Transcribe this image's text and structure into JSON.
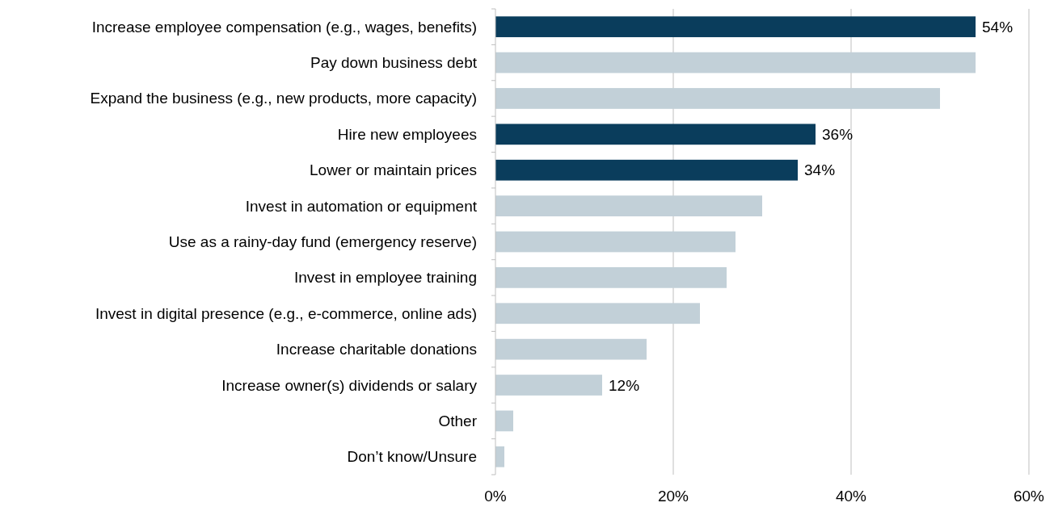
{
  "chart_data": {
    "type": "bar",
    "orientation": "horizontal",
    "categories": [
      "Increase employee compensation (e.g., wages, benefits)",
      "Pay down business debt",
      "Expand the business (e.g., new products, more capacity)",
      "Hire new employees",
      "Lower or maintain prices",
      "Invest in automation or equipment",
      "Use as a rainy-day fund (emergency reserve)",
      "Invest in employee training",
      "Invest in digital presence (e.g., e-commerce, online ads)",
      "Increase charitable donations",
      "Increase owner(s) dividends or salary",
      "Other",
      "Don’t know/Unsure"
    ],
    "values": [
      54,
      54,
      50,
      36,
      34,
      30,
      27,
      26,
      23,
      17,
      12,
      2,
      1
    ],
    "value_labels": [
      "54%",
      null,
      null,
      "36%",
      "34%",
      null,
      null,
      null,
      null,
      null,
      "12%",
      null,
      null
    ],
    "colors": [
      "#0a3d5c",
      "#c2d0d8",
      "#c2d0d8",
      "#0a3d5c",
      "#0a3d5c",
      "#c2d0d8",
      "#c2d0d8",
      "#c2d0d8",
      "#c2d0d8",
      "#c2d0d8",
      "#c2d0d8",
      "#c2d0d8",
      "#c2d0d8"
    ],
    "xlim": [
      0,
      60
    ],
    "xticks": [
      {
        "value": 0,
        "label": "0%"
      },
      {
        "value": 20,
        "label": "20%"
      },
      {
        "value": 40,
        "label": "40%"
      },
      {
        "value": 60,
        "label": "60%"
      }
    ],
    "grid": "x"
  }
}
